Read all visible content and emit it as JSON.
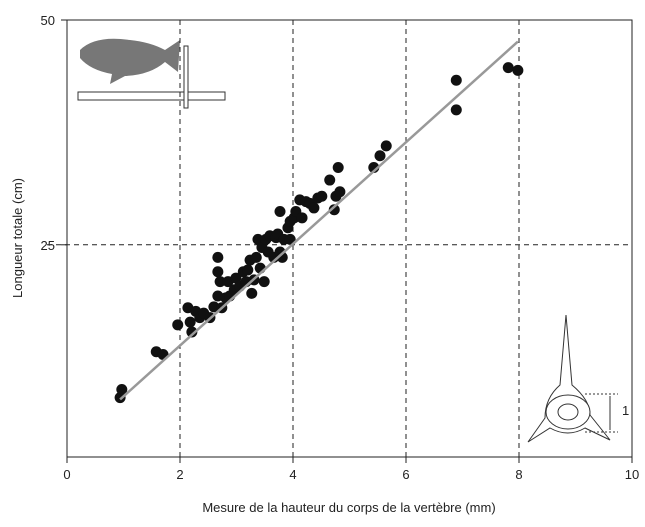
{
  "chart_data": {
    "type": "scatter",
    "x_label": "Mesure de la hauteur du corps de la vertèbre (mm)",
    "y_label": "Longueur totale (cm)",
    "annotation": "1",
    "color": "#111111",
    "x": [
      0.94,
      0.97,
      1.58,
      1.7,
      1.96,
      2.14,
      2.18,
      2.21,
      2.28,
      2.35,
      2.42,
      2.53,
      2.6,
      2.67,
      2.71,
      2.67,
      2.67,
      2.74,
      2.81,
      2.85,
      2.88,
      2.96,
      2.99,
      3.06,
      3.12,
      3.17,
      3.2,
      3.24,
      3.27,
      3.31,
      3.35,
      3.38,
      3.42,
      3.45,
      3.49,
      3.52,
      3.56,
      3.59,
      3.66,
      3.7,
      3.73,
      3.77,
      3.77,
      3.81,
      3.84,
      3.91,
      3.95,
      3.95,
      4.02,
      4.05,
      4.12,
      4.16,
      4.23,
      4.3,
      4.37,
      4.44,
      4.51,
      4.65,
      4.73,
      4.76,
      4.8,
      4.83,
      5.43,
      5.54,
      5.65,
      6.89,
      6.89,
      7.81,
      7.98
    ],
    "y": [
      8.0,
      8.9,
      13.1,
      12.8,
      16.1,
      18.0,
      16.4,
      15.3,
      17.6,
      16.9,
      17.4,
      16.9,
      18.1,
      19.3,
      20.9,
      22.0,
      23.6,
      18.0,
      19.1,
      20.9,
      19.3,
      20.0,
      21.3,
      20.4,
      22.0,
      20.9,
      22.2,
      23.3,
      19.6,
      21.1,
      23.6,
      25.6,
      22.4,
      24.7,
      20.9,
      25.6,
      24.2,
      26.0,
      23.6,
      25.8,
      26.2,
      28.7,
      24.2,
      23.6,
      25.6,
      26.9,
      27.6,
      25.6,
      28.0,
      28.7,
      30.0,
      28.0,
      29.8,
      29.6,
      29.1,
      30.2,
      30.4,
      32.2,
      28.9,
      30.4,
      33.6,
      30.9,
      33.6,
      34.9,
      36.0,
      43.3,
      40.0,
      44.7,
      44.4
    ],
    "trend_line": {
      "color": "#999999",
      "x": [
        0.94,
        7.98
      ],
      "y": [
        7.8,
        47.6
      ]
    },
    "xlim": [
      0,
      10
    ],
    "xticks": [
      0,
      2,
      4,
      6,
      8,
      10
    ],
    "ylim": [
      1.4,
      50
    ],
    "yticks": [
      25,
      50
    ],
    "grid": true
  }
}
